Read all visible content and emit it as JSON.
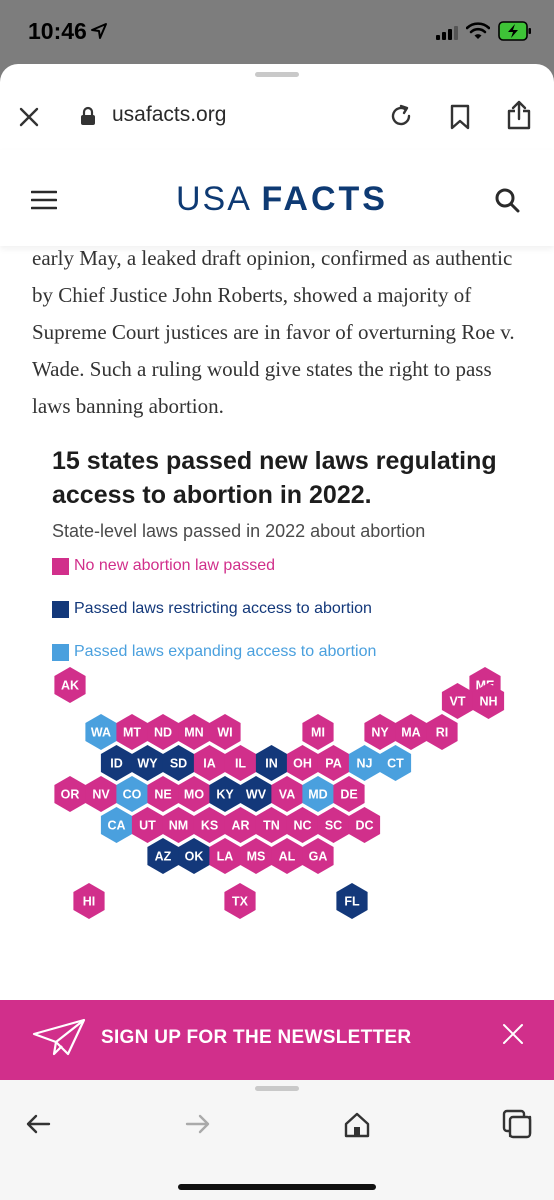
{
  "status_bar": {
    "time": "10:46"
  },
  "browser": {
    "url": "usafacts.org"
  },
  "site": {
    "logo_light": "USA",
    "logo_bold": "FACTS"
  },
  "article": {
    "text": "early May, a leaked draft opinion, confirmed as authentic by Chief Justice John Roberts, showed a majority of Supreme Court justices are in favor of overturning Roe v. Wade. Such a ruling would give states the right to pass laws banning abortion."
  },
  "chart_data": {
    "type": "hexmap",
    "title": "15 states passed new laws regulating access to abortion in 2022.",
    "subtitle": "State-level laws passed in 2022 about abortion",
    "legend": [
      {
        "key": "none",
        "label": "No new abortion law passed",
        "color": "#d12f8b"
      },
      {
        "key": "restrict",
        "label": "Passed laws restricting access to abortion",
        "color": "#13387a"
      },
      {
        "key": "expand",
        "label": "Passed laws expanding access to abortion",
        "color": "#4aa0de"
      }
    ],
    "states": [
      {
        "abbr": "AK",
        "status": "none"
      },
      {
        "abbr": "ME",
        "status": "none"
      },
      {
        "abbr": "VT",
        "status": "none"
      },
      {
        "abbr": "NH",
        "status": "none"
      },
      {
        "abbr": "WA",
        "status": "expand"
      },
      {
        "abbr": "MT",
        "status": "none"
      },
      {
        "abbr": "ND",
        "status": "none"
      },
      {
        "abbr": "MN",
        "status": "none"
      },
      {
        "abbr": "WI",
        "status": "none"
      },
      {
        "abbr": "MI",
        "status": "none"
      },
      {
        "abbr": "NY",
        "status": "none"
      },
      {
        "abbr": "MA",
        "status": "none"
      },
      {
        "abbr": "RI",
        "status": "none"
      },
      {
        "abbr": "ID",
        "status": "restrict"
      },
      {
        "abbr": "WY",
        "status": "restrict"
      },
      {
        "abbr": "SD",
        "status": "restrict"
      },
      {
        "abbr": "IA",
        "status": "none"
      },
      {
        "abbr": "IL",
        "status": "none"
      },
      {
        "abbr": "IN",
        "status": "restrict"
      },
      {
        "abbr": "OH",
        "status": "none"
      },
      {
        "abbr": "PA",
        "status": "none"
      },
      {
        "abbr": "NJ",
        "status": "expand"
      },
      {
        "abbr": "CT",
        "status": "expand"
      },
      {
        "abbr": "OR",
        "status": "none"
      },
      {
        "abbr": "NV",
        "status": "none"
      },
      {
        "abbr": "CO",
        "status": "expand"
      },
      {
        "abbr": "NE",
        "status": "none"
      },
      {
        "abbr": "MO",
        "status": "none"
      },
      {
        "abbr": "KY",
        "status": "restrict"
      },
      {
        "abbr": "WV",
        "status": "restrict"
      },
      {
        "abbr": "VA",
        "status": "none"
      },
      {
        "abbr": "MD",
        "status": "expand"
      },
      {
        "abbr": "DE",
        "status": "none"
      },
      {
        "abbr": "CA",
        "status": "expand"
      },
      {
        "abbr": "UT",
        "status": "none"
      },
      {
        "abbr": "NM",
        "status": "none"
      },
      {
        "abbr": "KS",
        "status": "none"
      },
      {
        "abbr": "AR",
        "status": "none"
      },
      {
        "abbr": "TN",
        "status": "none"
      },
      {
        "abbr": "NC",
        "status": "none"
      },
      {
        "abbr": "SC",
        "status": "none"
      },
      {
        "abbr": "DC",
        "status": "none"
      },
      {
        "abbr": "AZ",
        "status": "restrict"
      },
      {
        "abbr": "OK",
        "status": "restrict"
      },
      {
        "abbr": "LA",
        "status": "none"
      },
      {
        "abbr": "MS",
        "status": "none"
      },
      {
        "abbr": "AL",
        "status": "none"
      },
      {
        "abbr": "GA",
        "status": "none"
      },
      {
        "abbr": "HI",
        "status": "none"
      },
      {
        "abbr": "TX",
        "status": "none"
      },
      {
        "abbr": "FL",
        "status": "restrict"
      }
    ]
  },
  "newsletter": {
    "label": "SIGN UP FOR THE NEWSLETTER"
  },
  "icons": {
    "status": [
      "location-arrow-icon",
      "signal-icon",
      "wifi-icon",
      "battery-charging-icon"
    ],
    "browser": [
      "close-icon",
      "lock-icon",
      "reload-icon",
      "bookmark-icon",
      "share-icon"
    ],
    "site": [
      "menu-icon",
      "search-icon"
    ],
    "newsletter": [
      "paper-plane-icon",
      "close-icon"
    ],
    "toolbar": [
      "back-arrow-icon",
      "forward-arrow-icon",
      "home-icon",
      "tabs-icon"
    ]
  }
}
